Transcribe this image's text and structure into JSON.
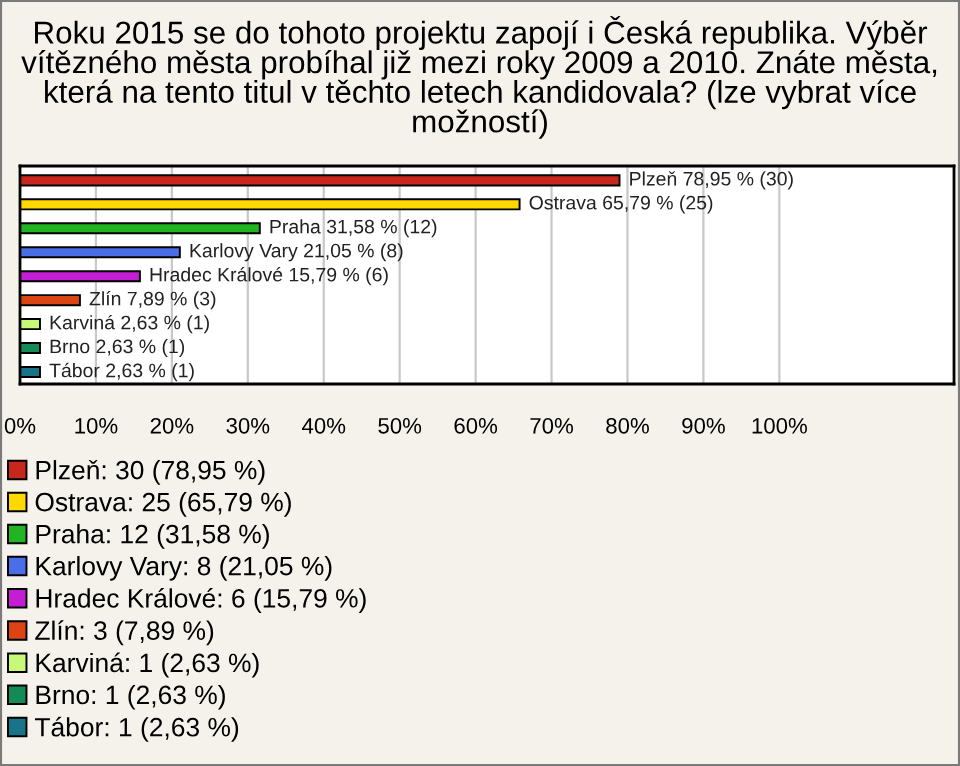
{
  "chart_data": {
    "type": "bar",
    "orientation": "horizontal",
    "title": "Roku 2015 se do tohoto projektu zapojí i Česká republika. Výběr vítězného města probíhal již mezi roky 2009 a 2010. Znáte města, která na tento titul v těchto letech kandidovala? (lze vybrat více možností)",
    "categories": [
      null,
      null,
      null,
      null,
      null,
      null,
      null,
      null,
      null
    ],
    "series": [
      {
        "name": "Plzeň: 30 (78,95 %)",
        "color": "#c8281c",
        "values": [
          78.95,
          null,
          null,
          null,
          null,
          null,
          null,
          null,
          null
        ],
        "value_labels": [
          "Plzeň 78,95 % (30)",
          null,
          null,
          null,
          null,
          null,
          null,
          null,
          null
        ]
      },
      {
        "name": "Ostrava: 25 (65,79 %)",
        "color": "#ffd800",
        "values": [
          null,
          65.79,
          null,
          null,
          null,
          null,
          null,
          null,
          null
        ],
        "value_labels": [
          null,
          "Ostrava 65,79 % (25)",
          null,
          null,
          null,
          null,
          null,
          null,
          null
        ]
      },
      {
        "name": "Praha: 12 (31,58 %)",
        "color": "#22b422",
        "values": [
          null,
          null,
          31.58,
          null,
          null,
          null,
          null,
          null,
          null
        ],
        "value_labels": [
          null,
          null,
          "Praha 31,58 % (12)",
          null,
          null,
          null,
          null,
          null,
          null
        ]
      },
      {
        "name": "Karlovy Vary: 8 (21,05 %)",
        "color": "#4a6ee8",
        "values": [
          null,
          null,
          null,
          21.05,
          null,
          null,
          null,
          null,
          null
        ],
        "value_labels": [
          null,
          null,
          null,
          "Karlovy Vary 21,05 % (8)",
          null,
          null,
          null,
          null,
          null
        ]
      },
      {
        "name": "Hradec Králové: 6 (15,79 %)",
        "color": "#c41ed4",
        "values": [
          null,
          null,
          null,
          null,
          15.79,
          null,
          null,
          null,
          null
        ],
        "value_labels": [
          null,
          null,
          null,
          null,
          "Hradec Králové 15,79 % (6)",
          null,
          null,
          null,
          null
        ]
      },
      {
        "name": "Zlín: 3 (7,89 %)",
        "color": "#dc4414",
        "values": [
          null,
          null,
          null,
          null,
          null,
          7.89,
          null,
          null,
          null
        ],
        "value_labels": [
          null,
          null,
          null,
          null,
          null,
          "Zlín 7,89 % (3)",
          null,
          null,
          null
        ]
      },
      {
        "name": "Karviná: 1 (2,63 %)",
        "color": "#c8f878",
        "values": [
          null,
          null,
          null,
          null,
          null,
          null,
          2.63,
          null,
          null
        ],
        "value_labels": [
          null,
          null,
          null,
          null,
          null,
          null,
          "Karviná 2,63 % (1)",
          null,
          null
        ]
      },
      {
        "name": "Brno: 1 (2,63 %)",
        "color": "#148a56",
        "values": [
          null,
          null,
          null,
          null,
          null,
          null,
          null,
          2.63,
          null
        ],
        "value_labels": [
          null,
          null,
          null,
          null,
          null,
          null,
          null,
          "Brno 2,63 % (1)",
          null
        ]
      },
      {
        "name": "Tábor: 1 (2,63 %)",
        "color": "#1a7488",
        "values": [
          null,
          null,
          null,
          null,
          null,
          null,
          null,
          null,
          2.63
        ],
        "value_labels": [
          null,
          null,
          null,
          null,
          null,
          null,
          null,
          null,
          "Tábor 2,63 % (1)"
        ]
      }
    ],
    "xlim": [
      0,
      123
    ],
    "xticks": [
      {
        "value": 0,
        "label": "0%"
      },
      {
        "value": 10,
        "label": "10%"
      },
      {
        "value": 20,
        "label": "20%"
      },
      {
        "value": 30,
        "label": "30%"
      },
      {
        "value": 40,
        "label": "40%"
      },
      {
        "value": 50,
        "label": "50%"
      },
      {
        "value": 60,
        "label": "60%"
      },
      {
        "value": 70,
        "label": "70%"
      },
      {
        "value": 80,
        "label": "80%"
      },
      {
        "value": 90,
        "label": "90%"
      },
      {
        "value": 100,
        "label": "100%"
      }
    ],
    "grid": "x",
    "legend": "bottom",
    "tick_labels": "x"
  }
}
